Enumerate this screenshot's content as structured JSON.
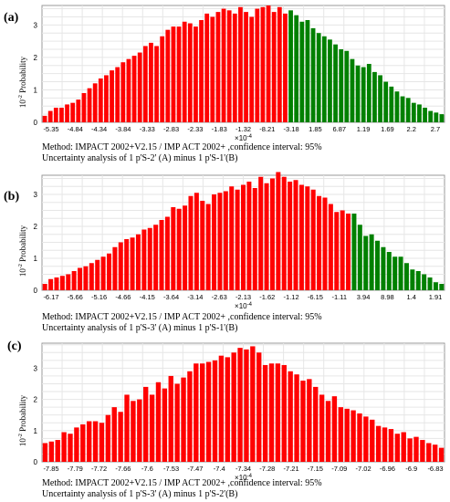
{
  "chart_data": [
    {
      "panel_label": "(a)",
      "type": "bar",
      "ylabel_power": "10",
      "ylabel_exp": "-2",
      "ylabel_text": "Probability",
      "yticks": [
        "0",
        "1",
        "2",
        "3"
      ],
      "ylim": [
        0,
        3.6
      ],
      "x_multiplier_base": "×10",
      "x_multiplier_exp": "-4",
      "xtick_labels": [
        "-5.35",
        "-4.84",
        "-4.34",
        "-3.84",
        "-3.33",
        "-2.83",
        "-2.33",
        "-1.83",
        "-1.32",
        "-8.21",
        "-3.18",
        "1.85",
        "6.87",
        "1.19",
        "1.69",
        "2.2",
        "2.7"
      ],
      "series": [
        {
          "color": "#ff0000",
          "values": [
            0.2,
            0.35,
            0.45,
            0.45,
            0.55,
            0.6,
            0.7,
            0.9,
            1.05,
            1.2,
            1.35,
            1.45,
            1.6,
            1.7,
            1.85,
            1.95,
            2.05,
            2.15,
            2.35,
            2.45,
            2.35,
            2.65,
            2.85,
            2.95,
            2.95,
            3.1,
            3.05,
            2.95,
            3.15,
            3.35,
            3.25,
            3.4,
            3.5,
            3.45,
            3.35,
            3.55,
            3.4,
            3.25,
            3.5,
            3.55,
            3.6,
            3.4,
            3.55,
            3.35
          ]
        },
        {
          "color": "#008000",
          "values": [
            3.45,
            3.3,
            3.1,
            3.15,
            2.9,
            2.75,
            2.65,
            2.55,
            2.4,
            2.25,
            2.2,
            1.95,
            1.75,
            1.7,
            1.8,
            1.55,
            1.45,
            1.25,
            1.1,
            0.95,
            0.8,
            0.75,
            0.6,
            0.55,
            0.45,
            0.35,
            0.3,
            0.25
          ]
        }
      ],
      "caption_line1": "Method: IMPACT 2002+V2.15 / IMP ACT 2002+ ,confidence interval: 95%",
      "caption_line2": "Uncertainty analysis of 1 p'S-2' (A) minus 1 p'S-1'(B)"
    },
    {
      "panel_label": "(b)",
      "type": "bar",
      "ylabel_power": "10",
      "ylabel_exp": "-2",
      "ylabel_text": "Probability",
      "yticks": [
        "0",
        "1",
        "2",
        "3"
      ],
      "ylim": [
        0,
        3.6
      ],
      "x_multiplier_base": "×10",
      "x_multiplier_exp": "-4",
      "xtick_labels": [
        "-6.17",
        "-5.66",
        "-5.16",
        "-4.66",
        "-4.15",
        "-3.64",
        "-3.14",
        "-2.63",
        "-2.13",
        "-1.62",
        "-1.12",
        "-6.15",
        "-1.11",
        "3.94",
        "8.98",
        "1.4",
        "1.91"
      ],
      "series": [
        {
          "color": "#ff0000",
          "values": [
            0.2,
            0.35,
            0.4,
            0.45,
            0.5,
            0.6,
            0.7,
            0.75,
            0.85,
            0.95,
            1.05,
            1.15,
            1.35,
            1.5,
            1.6,
            1.65,
            1.75,
            1.9,
            1.95,
            2.05,
            2.2,
            2.3,
            2.6,
            2.55,
            2.65,
            2.95,
            3.05,
            2.8,
            2.7,
            3.0,
            3.05,
            3.1,
            3.25,
            3.15,
            3.3,
            3.4,
            3.2,
            3.55,
            3.35,
            3.5,
            3.7,
            3.55,
            3.4,
            3.45,
            3.3,
            3.25,
            3.15,
            2.95,
            2.9,
            2.7,
            2.45,
            2.5,
            2.4
          ]
        },
        {
          "color": "#008000",
          "values": [
            2.4,
            2.05,
            1.7,
            1.75,
            1.55,
            1.35,
            1.2,
            1.05,
            1.05,
            0.85,
            0.65,
            0.6,
            0.5,
            0.4,
            0.25,
            0.2
          ]
        }
      ],
      "caption_line1": "Method: IMPACT 2002+V2.15 / IMP ACT 2002+ ,confidence interval: 95%",
      "caption_line2": "Uncertainty analysis of 1 p'S-3' (A) minus 1 p'S-1'(B)"
    },
    {
      "panel_label": "(c)",
      "type": "bar",
      "ylabel_power": "10",
      "ylabel_exp": "-2",
      "ylabel_text": "Probability",
      "yticks": [
        "0",
        "1",
        "2",
        "3"
      ],
      "ylim": [
        0,
        3.8
      ],
      "x_multiplier_base": "×10",
      "x_multiplier_exp": "-4",
      "xtick_labels": [
        "-7.85",
        "-7.79",
        "-7.72",
        "-7.66",
        "-7.6",
        "-7.53",
        "-7.47",
        "-7.4",
        "-7.34",
        "-7.28",
        "-7.21",
        "-7.15",
        "-7.09",
        "-7.02",
        "-6.96",
        "-6.9",
        "-6.83"
      ],
      "series": [
        {
          "color": "#ff0000",
          "values": [
            0.6,
            0.65,
            0.7,
            0.95,
            0.9,
            1.1,
            1.2,
            1.3,
            1.3,
            1.25,
            1.5,
            1.75,
            1.6,
            2.15,
            1.95,
            2.0,
            2.4,
            2.15,
            2.55,
            2.35,
            2.75,
            2.5,
            2.7,
            2.9,
            3.15,
            3.15,
            3.2,
            3.25,
            3.4,
            3.35,
            3.5,
            3.65,
            3.6,
            3.7,
            3.5,
            3.1,
            3.15,
            3.15,
            3.1,
            2.9,
            2.8,
            2.6,
            2.65,
            2.4,
            2.15,
            1.95,
            2.1,
            1.75,
            1.7,
            1.65,
            1.55,
            1.45,
            1.35,
            1.15,
            1.1,
            1.05,
            0.9,
            0.95,
            0.75,
            0.8,
            0.7,
            0.6,
            0.55,
            0.45
          ]
        }
      ],
      "caption_line1": "Method: IMPACT 2002+V2.15 / IMP ACT 2002+ ,confidence interval: 95%",
      "caption_line2": "Uncertainty analysis of 1 p'S-3' (A) minus 1 p'S-2'(B)"
    }
  ]
}
